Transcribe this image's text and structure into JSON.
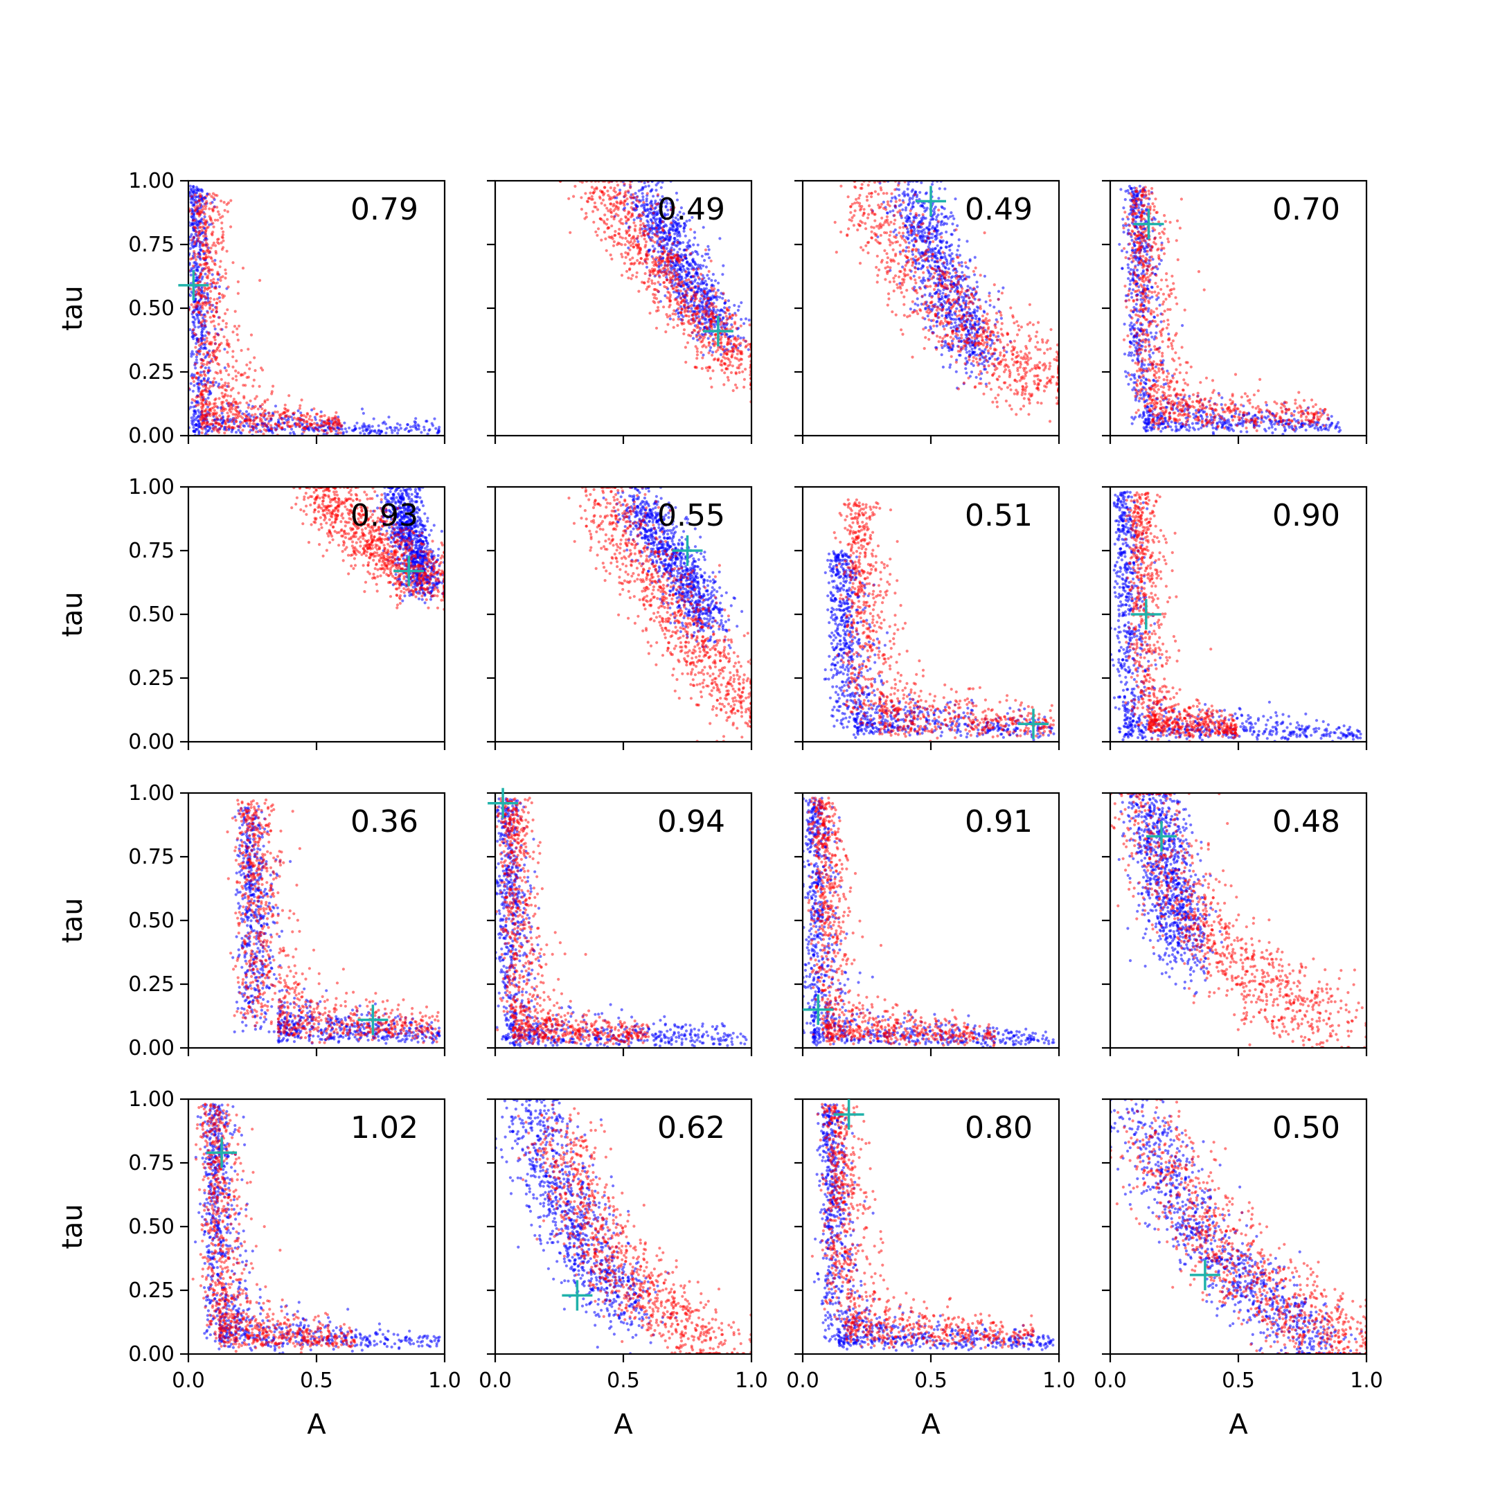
{
  "colors": {
    "series_a": "#0000ff",
    "series_b": "#ff0000",
    "marker": "#20b2aa"
  },
  "chart_data": {
    "type": "scatter",
    "layout": "4x4 grid",
    "shared_x": true,
    "shared_y": true,
    "xlabel": "A",
    "ylabel": "tau",
    "xlim": [
      0,
      1
    ],
    "ylim": [
      0,
      1
    ],
    "xticks": [
      "0.0",
      "0.5",
      "1.0"
    ],
    "yticks": [
      "0.00",
      "0.25",
      "0.50",
      "0.75",
      "1.00"
    ],
    "grid": false,
    "series": [
      {
        "color": "#0000ff",
        "marker": "point"
      },
      {
        "color": "#ff0000",
        "marker": "point"
      }
    ],
    "panels": [
      {
        "row": 0,
        "col": 0,
        "label": "0.79",
        "marker": {
          "x": 0.02,
          "y": 0.59
        },
        "blue": {
          "shape": "L",
          "corner_x": 0.02,
          "corner_y": 0.02,
          "tail_x": 0.98,
          "tail_y": 0.98,
          "spread": 0.04
        },
        "red": {
          "shape": "L",
          "corner_x": 0.05,
          "corner_y": 0.04,
          "tail_x": 0.6,
          "tail_y": 0.95,
          "spread": 0.07
        }
      },
      {
        "row": 0,
        "col": 1,
        "label": "0.49",
        "marker": {
          "x": 0.87,
          "y": 0.41
        },
        "blue": {
          "shape": "band",
          "from": [
            0.58,
            0.95
          ],
          "to": [
            0.88,
            0.38
          ],
          "spread": 0.05
        },
        "red": {
          "shape": "band",
          "from": [
            0.4,
            0.98
          ],
          "to": [
            0.97,
            0.25
          ],
          "spread": 0.06
        }
      },
      {
        "row": 0,
        "col": 2,
        "label": "0.49",
        "marker": {
          "x": 0.5,
          "y": 0.92
        },
        "blue": {
          "shape": "band",
          "from": [
            0.42,
            0.95
          ],
          "to": [
            0.68,
            0.3
          ],
          "spread": 0.06
        },
        "red": {
          "shape": "curve",
          "from": [
            0.25,
            0.95
          ],
          "mid": [
            0.55,
            0.4
          ],
          "to": [
            0.97,
            0.2
          ],
          "spread": 0.08
        }
      },
      {
        "row": 0,
        "col": 3,
        "label": "0.70",
        "marker": {
          "x": 0.15,
          "y": 0.83
        },
        "blue": {
          "shape": "L",
          "corner_x": 0.13,
          "corner_y": 0.04,
          "tail_x": 0.9,
          "tail_y": 0.98,
          "spread": 0.05
        },
        "red": {
          "shape": "L",
          "corner_x": 0.15,
          "corner_y": 0.08,
          "tail_x": 0.85,
          "tail_y": 0.98,
          "spread": 0.07
        }
      },
      {
        "row": 1,
        "col": 0,
        "label": "0.93",
        "marker": {
          "x": 0.86,
          "y": 0.67
        },
        "blue": {
          "shape": "band",
          "from": [
            0.82,
            0.97
          ],
          "to": [
            0.92,
            0.6
          ],
          "spread": 0.04
        },
        "red": {
          "shape": "band",
          "from": [
            0.5,
            0.98
          ],
          "to": [
            0.97,
            0.6
          ],
          "spread": 0.06
        }
      },
      {
        "row": 1,
        "col": 1,
        "label": "0.55",
        "marker": {
          "x": 0.75,
          "y": 0.75
        },
        "blue": {
          "shape": "band",
          "from": [
            0.55,
            0.95
          ],
          "to": [
            0.85,
            0.45
          ],
          "spread": 0.05
        },
        "red": {
          "shape": "band",
          "from": [
            0.4,
            0.98
          ],
          "to": [
            0.98,
            0.1
          ],
          "spread": 0.07
        }
      },
      {
        "row": 1,
        "col": 2,
        "label": "0.51",
        "marker": {
          "x": 0.9,
          "y": 0.07
        },
        "blue": {
          "shape": "L",
          "corner_x": 0.2,
          "corner_y": 0.05,
          "tail_x": 0.98,
          "tail_y": 0.75,
          "spread": 0.06
        },
        "red": {
          "shape": "L",
          "corner_x": 0.3,
          "corner_y": 0.06,
          "tail_x": 0.98,
          "tail_y": 0.95,
          "spread": 0.08
        }
      },
      {
        "row": 1,
        "col": 3,
        "label": "0.90",
        "marker": {
          "x": 0.14,
          "y": 0.5
        },
        "blue": {
          "shape": "L",
          "corner_x": 0.05,
          "corner_y": 0.03,
          "tail_x": 0.98,
          "tail_y": 0.98,
          "spread": 0.05
        },
        "red": {
          "shape": "L",
          "corner_x": 0.15,
          "corner_y": 0.05,
          "tail_x": 0.5,
          "tail_y": 0.98,
          "spread": 0.06
        }
      },
      {
        "row": 2,
        "col": 0,
        "label": "0.36",
        "marker": {
          "x": 0.72,
          "y": 0.11
        },
        "blue": {
          "shape": "L",
          "corner_x": 0.35,
          "corner_y": 0.06,
          "tail_x": 0.98,
          "tail_y": 0.95,
          "spread": 0.06
        },
        "red": {
          "shape": "L",
          "corner_x": 0.35,
          "corner_y": 0.08,
          "tail_x": 0.98,
          "tail_y": 0.98,
          "spread": 0.08
        }
      },
      {
        "row": 2,
        "col": 1,
        "label": "0.94",
        "marker": {
          "x": 0.03,
          "y": 0.96
        },
        "blue": {
          "shape": "L",
          "corner_x": 0.04,
          "corner_y": 0.03,
          "tail_x": 0.98,
          "tail_y": 0.98,
          "spread": 0.05
        },
        "red": {
          "shape": "L",
          "corner_x": 0.07,
          "corner_y": 0.05,
          "tail_x": 0.6,
          "tail_y": 0.98,
          "spread": 0.06
        }
      },
      {
        "row": 2,
        "col": 2,
        "label": "0.91",
        "marker": {
          "x": 0.06,
          "y": 0.15
        },
        "blue": {
          "shape": "L",
          "corner_x": 0.04,
          "corner_y": 0.03,
          "tail_x": 0.98,
          "tail_y": 0.98,
          "spread": 0.05
        },
        "red": {
          "shape": "L",
          "corner_x": 0.09,
          "corner_y": 0.05,
          "tail_x": 0.75,
          "tail_y": 0.98,
          "spread": 0.06
        }
      },
      {
        "row": 2,
        "col": 3,
        "label": "0.48",
        "marker": {
          "x": 0.2,
          "y": 0.83
        },
        "blue": {
          "shape": "band",
          "from": [
            0.15,
            0.98
          ],
          "to": [
            0.3,
            0.35
          ],
          "spread": 0.06
        },
        "red": {
          "shape": "curve",
          "from": [
            0.12,
            0.98
          ],
          "mid": [
            0.3,
            0.3
          ],
          "to": [
            0.9,
            0.1
          ],
          "spread": 0.08
        }
      },
      {
        "row": 3,
        "col": 0,
        "label": "1.02",
        "marker": {
          "x": 0.13,
          "y": 0.79
        },
        "blue": {
          "shape": "L",
          "corner_x": 0.12,
          "corner_y": 0.05,
          "tail_x": 0.98,
          "tail_y": 0.98,
          "spread": 0.06
        },
        "red": {
          "shape": "L",
          "corner_x": 0.12,
          "corner_y": 0.06,
          "tail_x": 0.65,
          "tail_y": 0.98,
          "spread": 0.07
        }
      },
      {
        "row": 3,
        "col": 1,
        "label": "0.62",
        "marker": {
          "x": 0.32,
          "y": 0.23
        },
        "blue": {
          "shape": "curve",
          "from": [
            0.15,
            0.98
          ],
          "mid": [
            0.25,
            0.45
          ],
          "to": [
            0.55,
            0.15
          ],
          "spread": 0.07
        },
        "red": {
          "shape": "curve",
          "from": [
            0.25,
            0.9
          ],
          "mid": [
            0.35,
            0.25
          ],
          "to": [
            0.9,
            0.05
          ],
          "spread": 0.07
        }
      },
      {
        "row": 3,
        "col": 2,
        "label": "0.80",
        "marker": {
          "x": 0.18,
          "y": 0.94
        },
        "blue": {
          "shape": "L",
          "corner_x": 0.14,
          "corner_y": 0.05,
          "tail_x": 0.98,
          "tail_y": 0.98,
          "spread": 0.05
        },
        "red": {
          "shape": "L",
          "corner_x": 0.17,
          "corner_y": 0.08,
          "tail_x": 0.9,
          "tail_y": 0.98,
          "spread": 0.07
        }
      },
      {
        "row": 3,
        "col": 3,
        "label": "0.50",
        "marker": {
          "x": 0.37,
          "y": 0.31
        },
        "blue": {
          "shape": "curve",
          "from": [
            0.1,
            0.95
          ],
          "mid": [
            0.35,
            0.3
          ],
          "to": [
            0.85,
            0.05
          ],
          "spread": 0.07
        },
        "red": {
          "shape": "curve",
          "from": [
            0.15,
            0.9
          ],
          "mid": [
            0.45,
            0.2
          ],
          "to": [
            0.98,
            0.05
          ],
          "spread": 0.08
        }
      }
    ]
  }
}
